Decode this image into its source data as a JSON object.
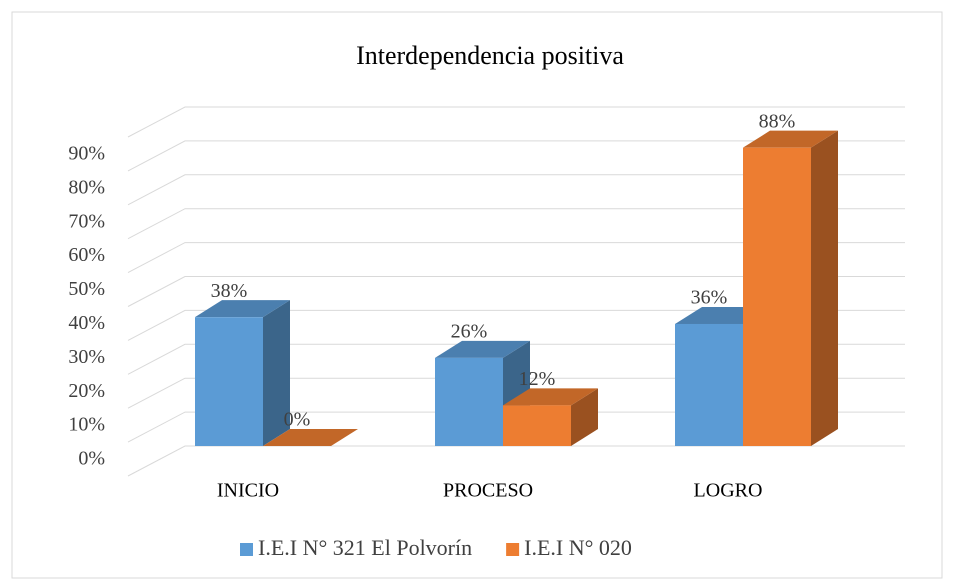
{
  "chart_data": {
    "type": "bar3d",
    "title": "Interdependencia positiva",
    "categories": [
      "INICIO",
      "PROCESO",
      "LOGRO"
    ],
    "series": [
      {
        "name": "I.E.I N° 321 El Polvorín",
        "color": "#5b9bd5",
        "values": [
          38,
          26,
          36
        ],
        "value_labels": [
          "38%",
          "26%",
          "36%"
        ]
      },
      {
        "name": "I.E.I N° 020",
        "color": "#ed7d31",
        "values": [
          0,
          12,
          88
        ],
        "value_labels": [
          "0%",
          "12%",
          "88%"
        ]
      }
    ],
    "ylim": [
      0,
      100
    ],
    "yticks": [
      {
        "value": 0,
        "label": "0%"
      },
      {
        "value": 10,
        "label": "10%"
      },
      {
        "value": 20,
        "label": "20%"
      },
      {
        "value": 30,
        "label": "30%"
      },
      {
        "value": 40,
        "label": "40%"
      },
      {
        "value": 50,
        "label": "50%"
      },
      {
        "value": 60,
        "label": "60%"
      },
      {
        "value": 70,
        "label": "70%"
      },
      {
        "value": 80,
        "label": "80%"
      },
      {
        "value": 90,
        "label": "90%"
      }
    ],
    "grid": true,
    "legend": "bottom"
  }
}
